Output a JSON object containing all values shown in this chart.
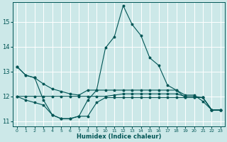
{
  "xlabel": "Humidex (Indice chaleur)",
  "bg_color": "#cce8e8",
  "grid_color": "#ffffff",
  "line_color": "#005555",
  "xlim": [
    -0.5,
    23.5
  ],
  "ylim": [
    10.8,
    15.8
  ],
  "yticks": [
    11,
    12,
    13,
    14,
    15
  ],
  "xticks": [
    0,
    1,
    2,
    3,
    4,
    5,
    6,
    7,
    8,
    9,
    10,
    11,
    12,
    13,
    14,
    15,
    16,
    17,
    18,
    19,
    20,
    21,
    22,
    23
  ],
  "y_main": [
    13.2,
    12.85,
    12.75,
    11.85,
    11.25,
    11.1,
    11.1,
    11.2,
    11.85,
    12.25,
    13.95,
    14.4,
    15.65,
    14.9,
    14.45,
    13.55,
    13.25,
    12.45,
    12.25,
    11.95,
    11.95,
    11.95,
    11.45,
    11.45
  ],
  "y_diagonal": [
    13.2,
    12.85,
    12.75,
    12.5,
    12.3,
    12.2,
    12.1,
    12.05,
    12.25,
    12.25,
    12.25,
    12.25,
    12.25,
    12.25,
    12.25,
    12.25,
    12.25,
    12.25,
    12.25,
    12.05,
    12.05,
    11.8,
    11.45,
    11.45
  ],
  "y_flat_upper": [
    12.0,
    12.0,
    12.0,
    12.0,
    12.0,
    12.0,
    12.0,
    12.0,
    12.0,
    12.0,
    12.0,
    12.05,
    12.1,
    12.1,
    12.1,
    12.1,
    12.1,
    12.1,
    12.1,
    12.0,
    12.0,
    11.95,
    11.45,
    11.45
  ],
  "y_bottom": [
    12.0,
    11.85,
    11.75,
    11.65,
    11.25,
    11.1,
    11.1,
    11.2,
    11.2,
    11.75,
    11.95,
    11.95,
    11.95,
    11.95,
    11.95,
    11.95,
    11.95,
    11.95,
    11.95,
    11.95,
    11.95,
    11.95,
    11.45,
    11.45
  ]
}
